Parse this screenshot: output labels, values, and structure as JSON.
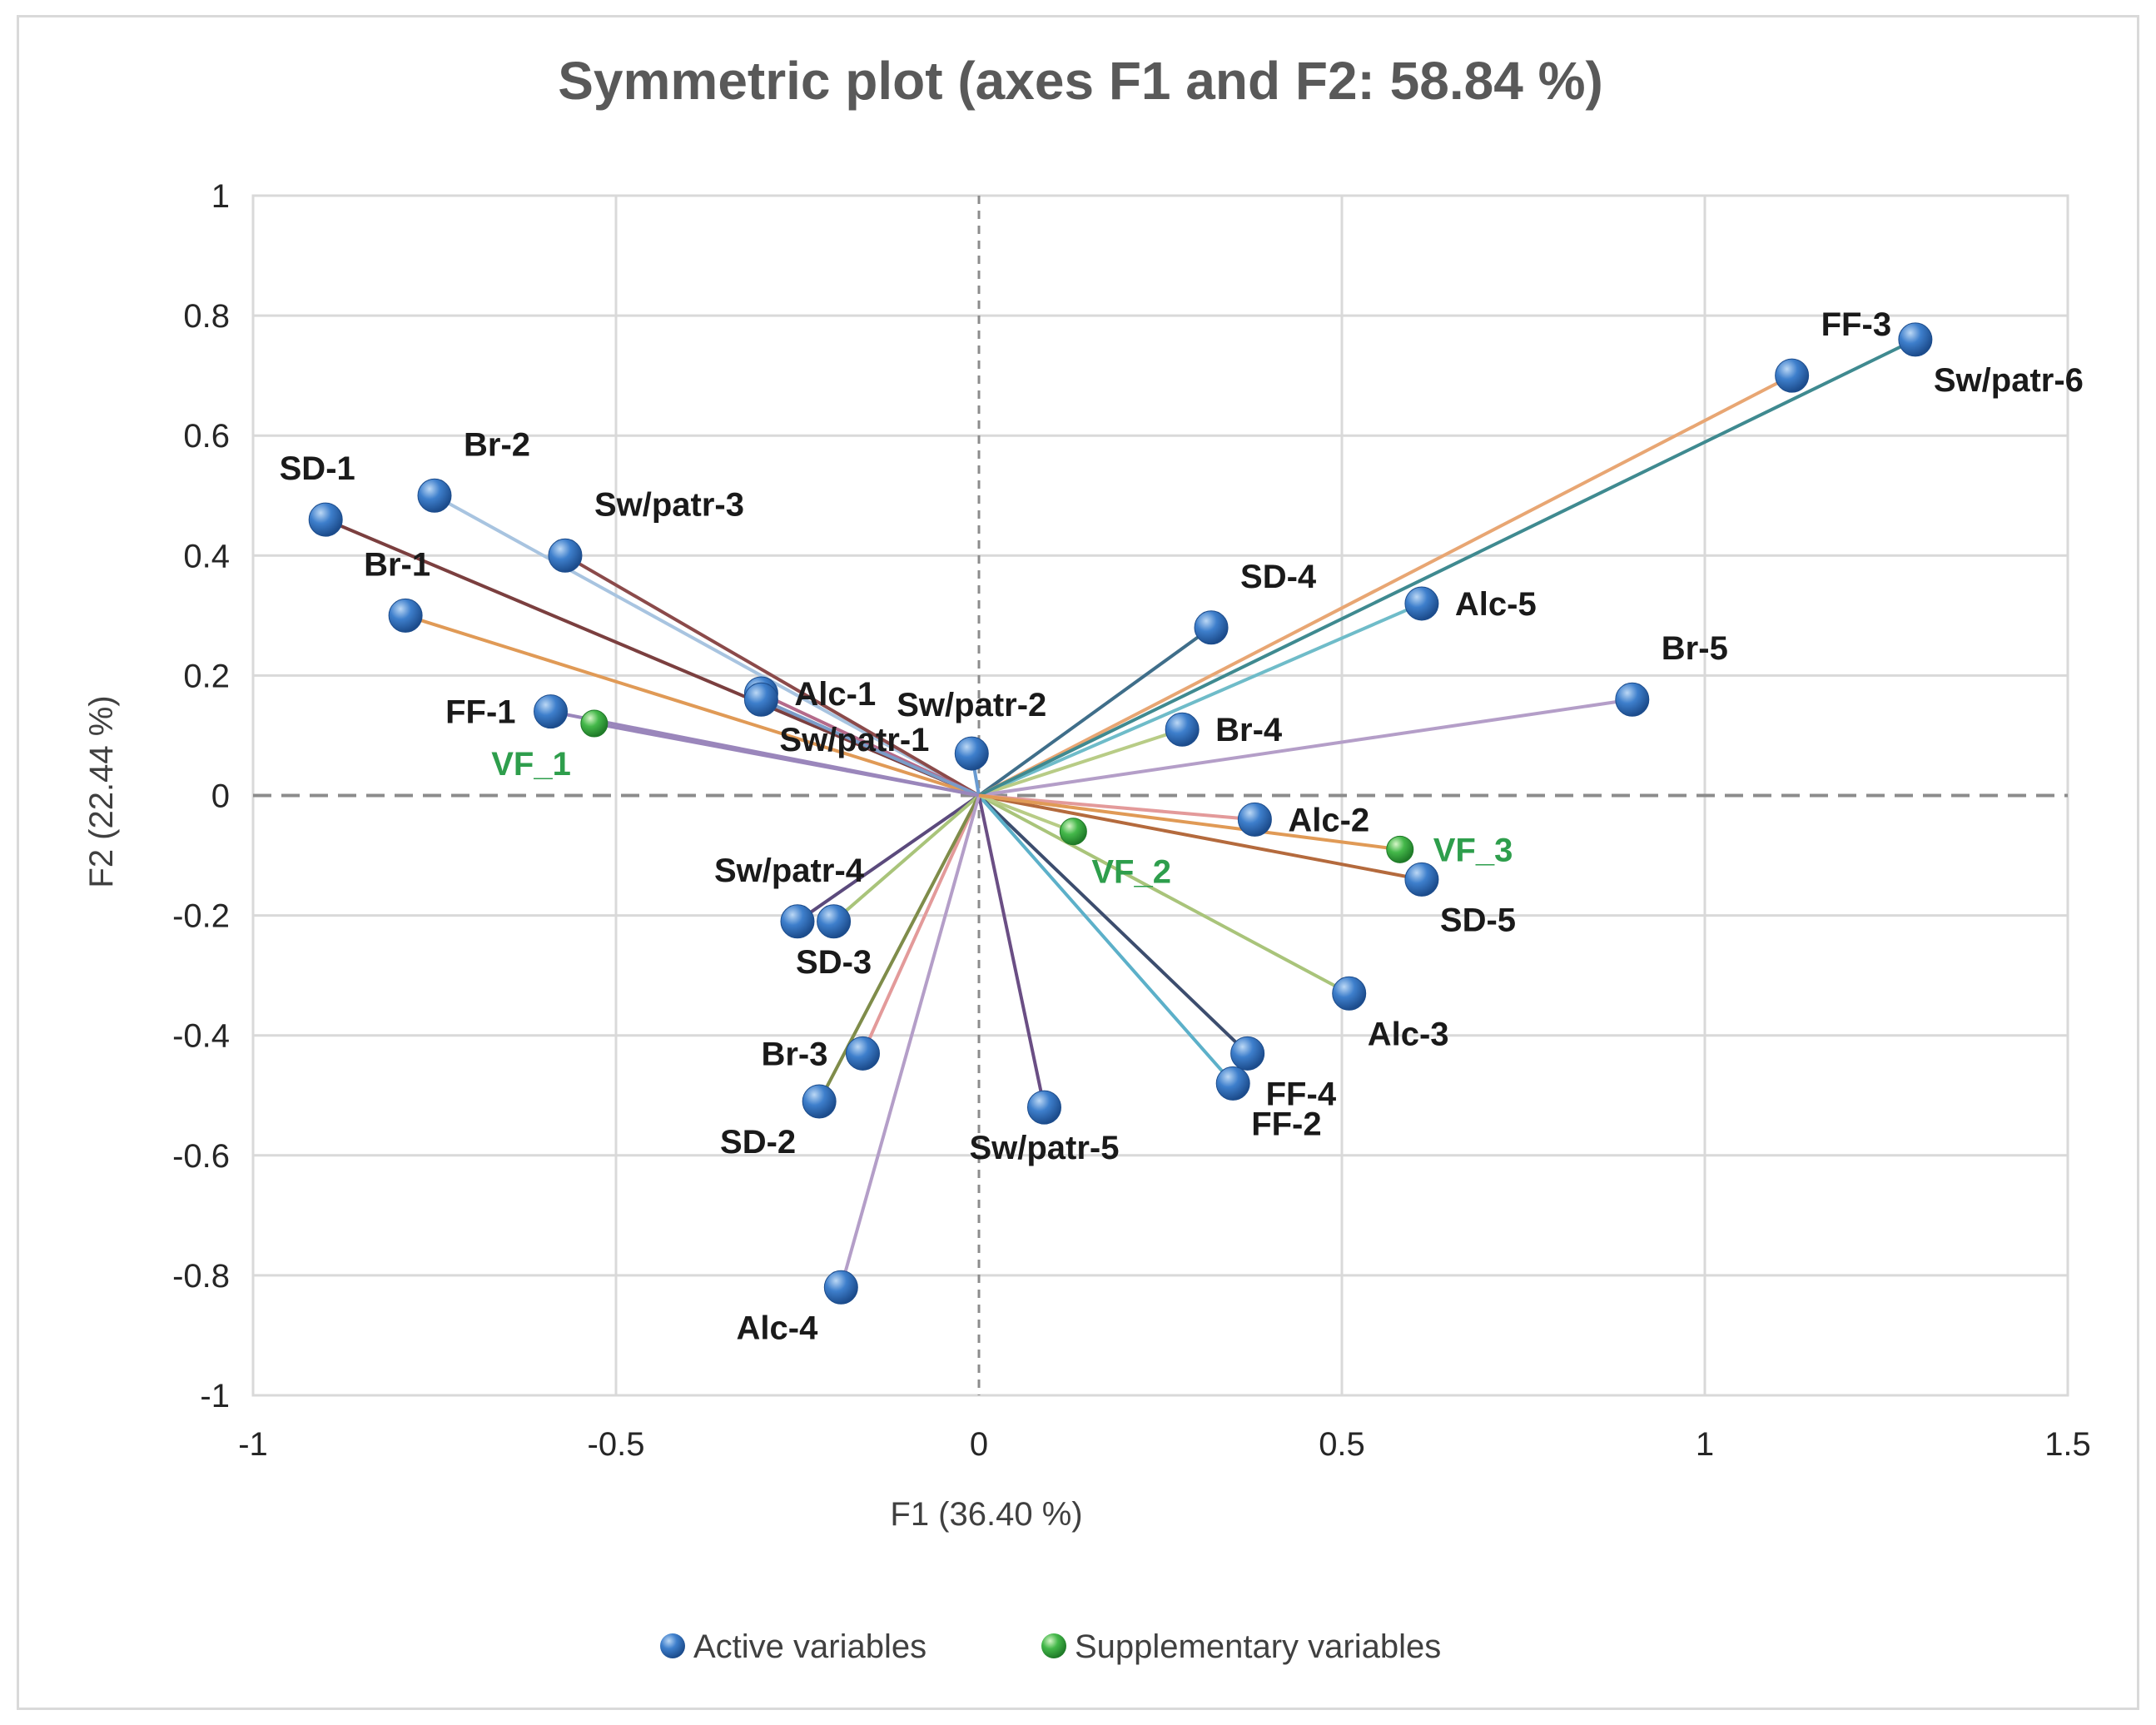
{
  "chart_data": {
    "type": "scatter",
    "title": "Symmetric plot (axes F1 and F2: 58.84 %)",
    "xlabel": "F1 (36.40 %)",
    "ylabel": "F2 (22.44 %)",
    "xlim": [
      -1,
      1.5
    ],
    "ylim": [
      -1,
      1
    ],
    "xticks": [
      "-1",
      "-0.5",
      "0",
      "0.5",
      "1",
      "1.5"
    ],
    "yticks": [
      "1",
      "0.8",
      "0.6",
      "0.4",
      "0.2",
      "0",
      "-0.2",
      "-0.4",
      "-0.6",
      "-0.8",
      "-1"
    ],
    "xtick_values": [
      -1,
      -0.5,
      0,
      0.5,
      1,
      1.5
    ],
    "ytick_values": [
      1,
      0.8,
      0.6,
      0.4,
      0.2,
      0,
      -0.2,
      -0.4,
      -0.6,
      -0.8,
      -1
    ],
    "grid": true,
    "legend": [
      {
        "name": "Active variables",
        "color": "#2f6fbd"
      },
      {
        "name": "Supplementary variables",
        "color": "#3cb043"
      }
    ],
    "legend_position": "bottom",
    "series": [
      {
        "name": "Active variables",
        "color": "#2f6fbd",
        "label_color": "#1a1a1a",
        "points": [
          {
            "label": "SD-1",
            "x": -0.9,
            "y": 0.46,
            "line": "#7b3f3f",
            "lp": "tl"
          },
          {
            "label": "Br-2",
            "x": -0.75,
            "y": 0.5,
            "line": "#a8c4e0",
            "lp": "tr"
          },
          {
            "label": "Sw/patr-3",
            "x": -0.57,
            "y": 0.4,
            "line": "#8b4a4a",
            "lp": "tr"
          },
          {
            "label": "Br-1",
            "x": -0.79,
            "y": 0.3,
            "line": "#e09a56",
            "lp": "tl"
          },
          {
            "label": "FF-1",
            "x": -0.59,
            "y": 0.14,
            "line": "#9a86bb",
            "lp": "l"
          },
          {
            "label": "Alc-1",
            "x": -0.3,
            "y": 0.17,
            "line": "#b46a8a",
            "lp": "r"
          },
          {
            "label": "Sw/patr-1",
            "x": -0.3,
            "y": 0.16,
            "line": "#7a9cc8",
            "lp": "br"
          },
          {
            "label": "Sw/patr-2",
            "x": -0.01,
            "y": 0.07,
            "line": "#6a9bd1",
            "lp": "t"
          },
          {
            "label": "SD-4",
            "x": 0.32,
            "y": 0.28,
            "line": "#3f6e8a",
            "lp": "tr"
          },
          {
            "label": "Alc-5",
            "x": 0.61,
            "y": 0.32,
            "line": "#6fbcc9",
            "lp": "r"
          },
          {
            "label": "Br-4",
            "x": 0.28,
            "y": 0.11,
            "line": "#b8cc86",
            "lp": "r"
          },
          {
            "label": "Br-5",
            "x": 0.9,
            "y": 0.16,
            "line": "#b49ec8",
            "lp": "tr"
          },
          {
            "label": "FF-3",
            "x": 1.12,
            "y": 0.7,
            "line": "#e8a673",
            "lp": "tr"
          },
          {
            "label": "Sw/patr-6",
            "x": 1.29,
            "y": 0.76,
            "line": "#3f8a90",
            "lp": "br"
          },
          {
            "label": "Alc-2",
            "x": 0.38,
            "y": -0.04,
            "line": "#e39a9a",
            "lp": "r"
          },
          {
            "label": "SD-5",
            "x": 0.61,
            "y": -0.14,
            "line": "#b46a3d",
            "lp": "br"
          },
          {
            "label": "Alc-3",
            "x": 0.51,
            "y": -0.33,
            "line": "#a9c47a",
            "lp": "br"
          },
          {
            "label": "FF-4",
            "x": 0.37,
            "y": -0.43,
            "line": "#3c4d6e",
            "lp": "br"
          },
          {
            "label": "FF-2",
            "x": 0.35,
            "y": -0.48,
            "line": "#5cb0c9",
            "lp": "br"
          },
          {
            "label": "Sw/patr-5",
            "x": 0.09,
            "y": -0.52,
            "line": "#6a4e84",
            "lp": "b"
          },
          {
            "label": "Sw/patr-4",
            "x": -0.25,
            "y": -0.21,
            "line": "#5b4a7c",
            "lp": "tl"
          },
          {
            "label": "SD-3",
            "x": -0.2,
            "y": -0.21,
            "line": "#a9c47a",
            "lp": "b"
          },
          {
            "label": "Br-3",
            "x": -0.16,
            "y": -0.43,
            "line": "#e39a9a",
            "lp": "l"
          },
          {
            "label": "SD-2",
            "x": -0.22,
            "y": -0.51,
            "line": "#7f8c4a",
            "lp": "bl"
          },
          {
            "label": "Alc-4",
            "x": -0.19,
            "y": -0.82,
            "line": "#b49ec8",
            "lp": "bl"
          }
        ]
      },
      {
        "name": "Supplementary variables",
        "color": "#3cb043",
        "label_color": "#2e9e4c",
        "points": [
          {
            "label": "VF_1",
            "x": -0.53,
            "y": 0.12,
            "line": "#9a86bb",
            "lp": "bl"
          },
          {
            "label": "VF_2",
            "x": 0.13,
            "y": -0.06,
            "line": "#b8cc86",
            "lp": "br"
          },
          {
            "label": "VF_3",
            "x": 0.58,
            "y": -0.09,
            "line": "#e09a56",
            "lp": "r"
          }
        ]
      }
    ]
  }
}
